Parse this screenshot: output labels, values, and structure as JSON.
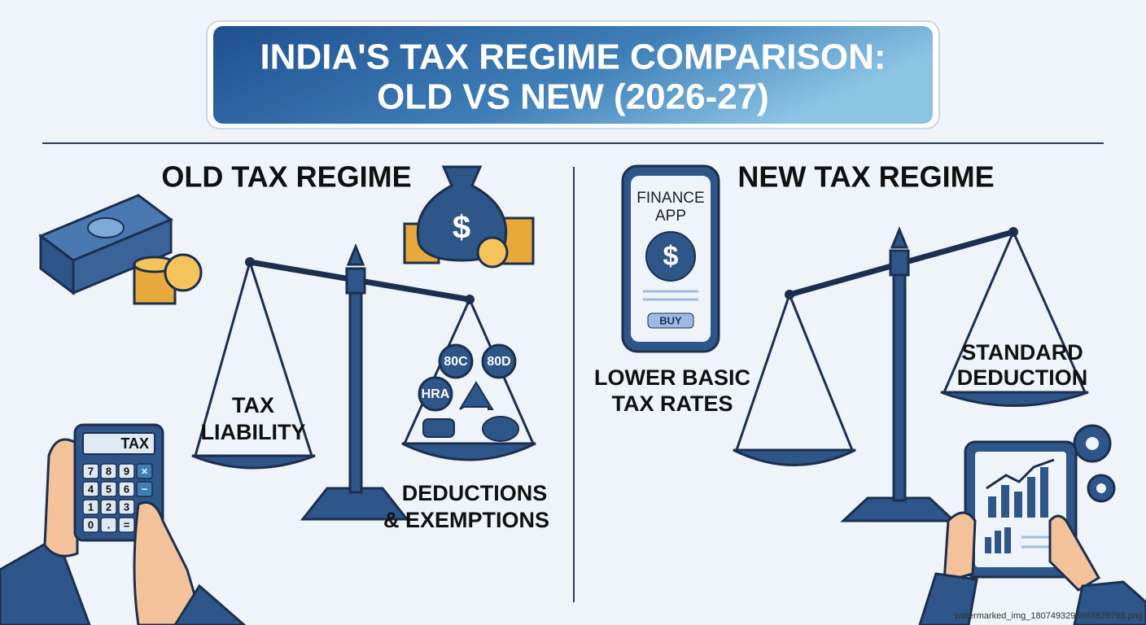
{
  "header": {
    "title_lines": [
      "INDIA'S TAX REGIME COMPARISON:",
      "OLD VS NEW (2026-27)"
    ]
  },
  "old_regime": {
    "heading": "OLD TAX REGIME",
    "left_pan_lines": [
      "TAX",
      "LIABILITY"
    ],
    "right_pan_lines": [
      "DEDUCTIONS",
      "& EXEMPTIONS"
    ],
    "badges": [
      "80C",
      "80D",
      "HRA"
    ],
    "bag_symbol": "$",
    "calculator": {
      "display": "TAX",
      "keys": [
        [
          "7",
          "8",
          "9",
          "×"
        ],
        [
          "4",
          "5",
          "6",
          "−"
        ],
        [
          "1",
          "2",
          "3"
        ],
        [
          "0",
          ".",
          "="
        ]
      ]
    }
  },
  "new_regime": {
    "heading": "NEW TAX REGIME",
    "phone": {
      "lines": [
        "FINANCE",
        "APP"
      ],
      "symbol": "$",
      "button": "BUY"
    },
    "left_label_lines": [
      "LOWER BASIC",
      "TAX RATES"
    ],
    "right_pan_lines": [
      "STANDARD",
      "DEDUCTION"
    ]
  },
  "footer": {
    "watermark": "watermarked_img_1807493296963829768.png"
  }
}
